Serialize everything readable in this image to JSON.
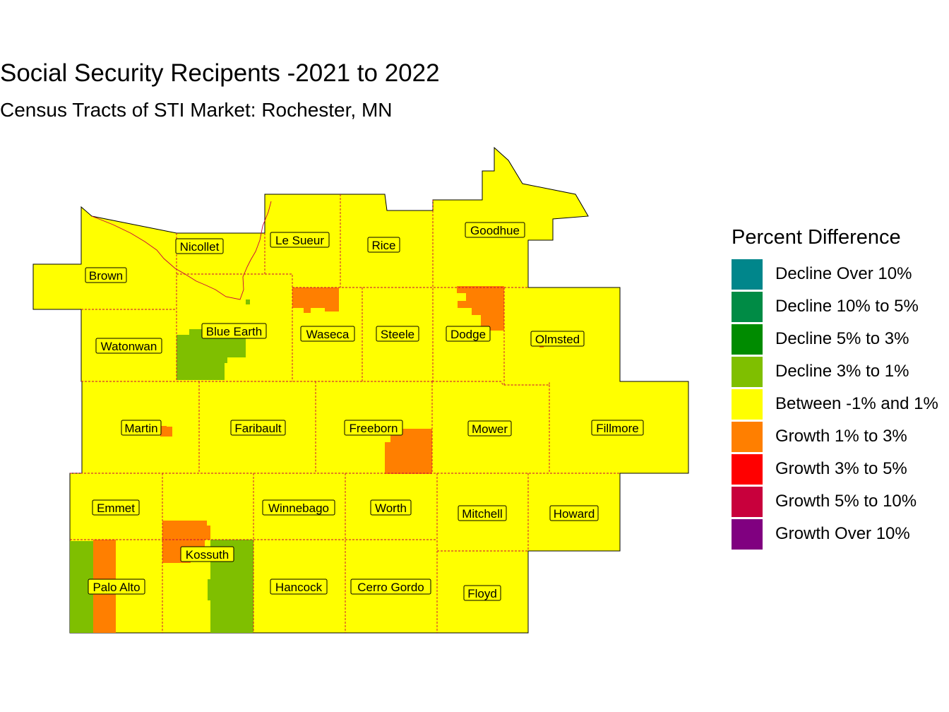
{
  "title": "Social Security Recipents -2021 to 2022",
  "subtitle": "Census Tracts of STI Market: Rochester, MN",
  "legend": {
    "title": "Percent Difference",
    "items": [
      {
        "label": "Decline Over 10%",
        "color": "#00868b"
      },
      {
        "label": "Decline 10% to 5%",
        "color": "#008b45"
      },
      {
        "label": "Decline 5% to 3%",
        "color": "#008b00"
      },
      {
        "label": "Decline 3% to 1%",
        "color": "#7fbf00"
      },
      {
        "label": "Between -1% and 1%",
        "color": "#ffff00"
      },
      {
        "label": "Growth 1% to 3%",
        "color": "#ff7f00"
      },
      {
        "label": "Growth 3% to 5%",
        "color": "#ff0000"
      },
      {
        "label": "Growth 5% to 10%",
        "color": "#c8003c"
      },
      {
        "label": "Growth Over 10%",
        "color": "#800080"
      }
    ]
  },
  "counties": [
    {
      "name": "Nicollet"
    },
    {
      "name": "Le Sueur"
    },
    {
      "name": "Rice"
    },
    {
      "name": "Goodhue"
    },
    {
      "name": "Brown"
    },
    {
      "name": "Blue Earth"
    },
    {
      "name": "Waseca"
    },
    {
      "name": "Steele"
    },
    {
      "name": "Dodge"
    },
    {
      "name": "Olmsted"
    },
    {
      "name": "Watonwan"
    },
    {
      "name": "Martin"
    },
    {
      "name": "Faribault"
    },
    {
      "name": "Freeborn"
    },
    {
      "name": "Mower"
    },
    {
      "name": "Fillmore"
    },
    {
      "name": "Emmet"
    },
    {
      "name": "Winnebago"
    },
    {
      "name": "Worth"
    },
    {
      "name": "Mitchell"
    },
    {
      "name": "Howard"
    },
    {
      "name": "Kossuth"
    },
    {
      "name": "Palo Alto"
    },
    {
      "name": "Hancock"
    },
    {
      "name": "Cerro Gordo"
    },
    {
      "name": "Floyd"
    }
  ]
}
